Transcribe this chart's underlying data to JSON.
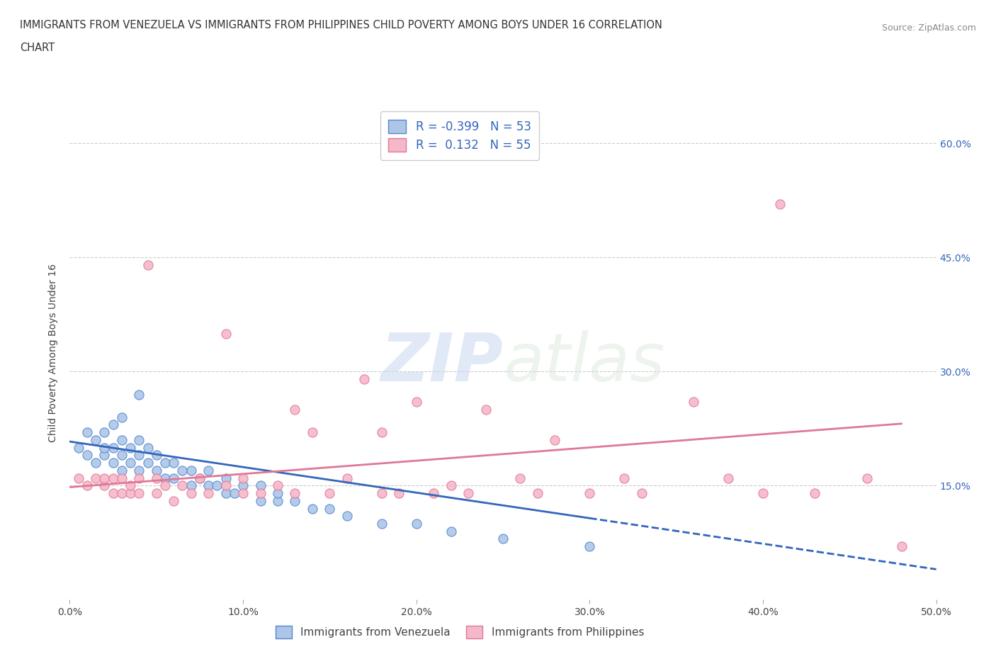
{
  "title_line1": "IMMIGRANTS FROM VENEZUELA VS IMMIGRANTS FROM PHILIPPINES CHILD POVERTY AMONG BOYS UNDER 16 CORRELATION",
  "title_line2": "CHART",
  "source": "Source: ZipAtlas.com",
  "ylabel": "Child Poverty Among Boys Under 16",
  "xlim": [
    0.0,
    0.5
  ],
  "ylim": [
    0.0,
    0.65
  ],
  "xtick_positions": [
    0.0,
    0.1,
    0.2,
    0.3,
    0.4,
    0.5
  ],
  "xtick_labels": [
    "0.0%",
    "10.0%",
    "20.0%",
    "30.0%",
    "40.0%",
    "50.0%"
  ],
  "ytick_labels": [
    "15.0%",
    "30.0%",
    "45.0%",
    "60.0%"
  ],
  "ytick_positions": [
    0.15,
    0.3,
    0.45,
    0.6
  ],
  "watermark": "ZIPatlas",
  "venezuela_color": "#adc6e8",
  "venezuela_edge": "#5588cc",
  "philippines_color": "#f5b8c8",
  "philippines_edge": "#e07898",
  "trend_venezuela_color": "#3366bb",
  "trend_philippines_color": "#e07898",
  "R_venezuela": -0.399,
  "N_venezuela": 53,
  "R_philippines": 0.132,
  "N_philippines": 55,
  "venezuela_x": [
    0.005,
    0.01,
    0.01,
    0.015,
    0.015,
    0.02,
    0.02,
    0.02,
    0.025,
    0.025,
    0.025,
    0.03,
    0.03,
    0.03,
    0.03,
    0.035,
    0.035,
    0.04,
    0.04,
    0.04,
    0.04,
    0.045,
    0.045,
    0.05,
    0.05,
    0.055,
    0.055,
    0.06,
    0.06,
    0.065,
    0.07,
    0.07,
    0.075,
    0.08,
    0.08,
    0.085,
    0.09,
    0.09,
    0.095,
    0.1,
    0.11,
    0.11,
    0.12,
    0.12,
    0.13,
    0.14,
    0.15,
    0.16,
    0.18,
    0.2,
    0.22,
    0.25,
    0.3
  ],
  "venezuela_y": [
    0.2,
    0.19,
    0.22,
    0.18,
    0.21,
    0.19,
    0.2,
    0.22,
    0.18,
    0.2,
    0.23,
    0.17,
    0.19,
    0.21,
    0.24,
    0.18,
    0.2,
    0.17,
    0.19,
    0.21,
    0.27,
    0.18,
    0.2,
    0.17,
    0.19,
    0.16,
    0.18,
    0.16,
    0.18,
    0.17,
    0.15,
    0.17,
    0.16,
    0.15,
    0.17,
    0.15,
    0.14,
    0.16,
    0.14,
    0.15,
    0.13,
    0.15,
    0.13,
    0.14,
    0.13,
    0.12,
    0.12,
    0.11,
    0.1,
    0.1,
    0.09,
    0.08,
    0.07
  ],
  "philippines_x": [
    0.005,
    0.01,
    0.015,
    0.02,
    0.02,
    0.025,
    0.025,
    0.03,
    0.03,
    0.035,
    0.035,
    0.04,
    0.04,
    0.045,
    0.05,
    0.05,
    0.055,
    0.06,
    0.065,
    0.07,
    0.075,
    0.08,
    0.09,
    0.09,
    0.1,
    0.1,
    0.11,
    0.12,
    0.13,
    0.13,
    0.14,
    0.15,
    0.16,
    0.17,
    0.18,
    0.18,
    0.19,
    0.2,
    0.21,
    0.22,
    0.23,
    0.24,
    0.26,
    0.27,
    0.28,
    0.3,
    0.32,
    0.33,
    0.36,
    0.38,
    0.4,
    0.41,
    0.43,
    0.46,
    0.48
  ],
  "philippines_y": [
    0.16,
    0.15,
    0.16,
    0.15,
    0.16,
    0.14,
    0.16,
    0.14,
    0.16,
    0.14,
    0.15,
    0.14,
    0.16,
    0.44,
    0.14,
    0.16,
    0.15,
    0.13,
    0.15,
    0.14,
    0.16,
    0.14,
    0.35,
    0.15,
    0.14,
    0.16,
    0.14,
    0.15,
    0.14,
    0.25,
    0.22,
    0.14,
    0.16,
    0.29,
    0.14,
    0.22,
    0.14,
    0.26,
    0.14,
    0.15,
    0.14,
    0.25,
    0.16,
    0.14,
    0.21,
    0.14,
    0.16,
    0.14,
    0.26,
    0.16,
    0.14,
    0.52,
    0.14,
    0.16,
    0.07
  ],
  "trend_ven_x0": 0.0,
  "trend_ven_y0": 0.208,
  "trend_ven_x1": 0.5,
  "trend_ven_y1": 0.04,
  "trend_phi_x0": 0.0,
  "trend_phi_y0": 0.148,
  "trend_phi_x1": 0.5,
  "trend_phi_y1": 0.235,
  "trend_ven_solid_end": 0.3,
  "trend_phi_solid_end": 0.48
}
